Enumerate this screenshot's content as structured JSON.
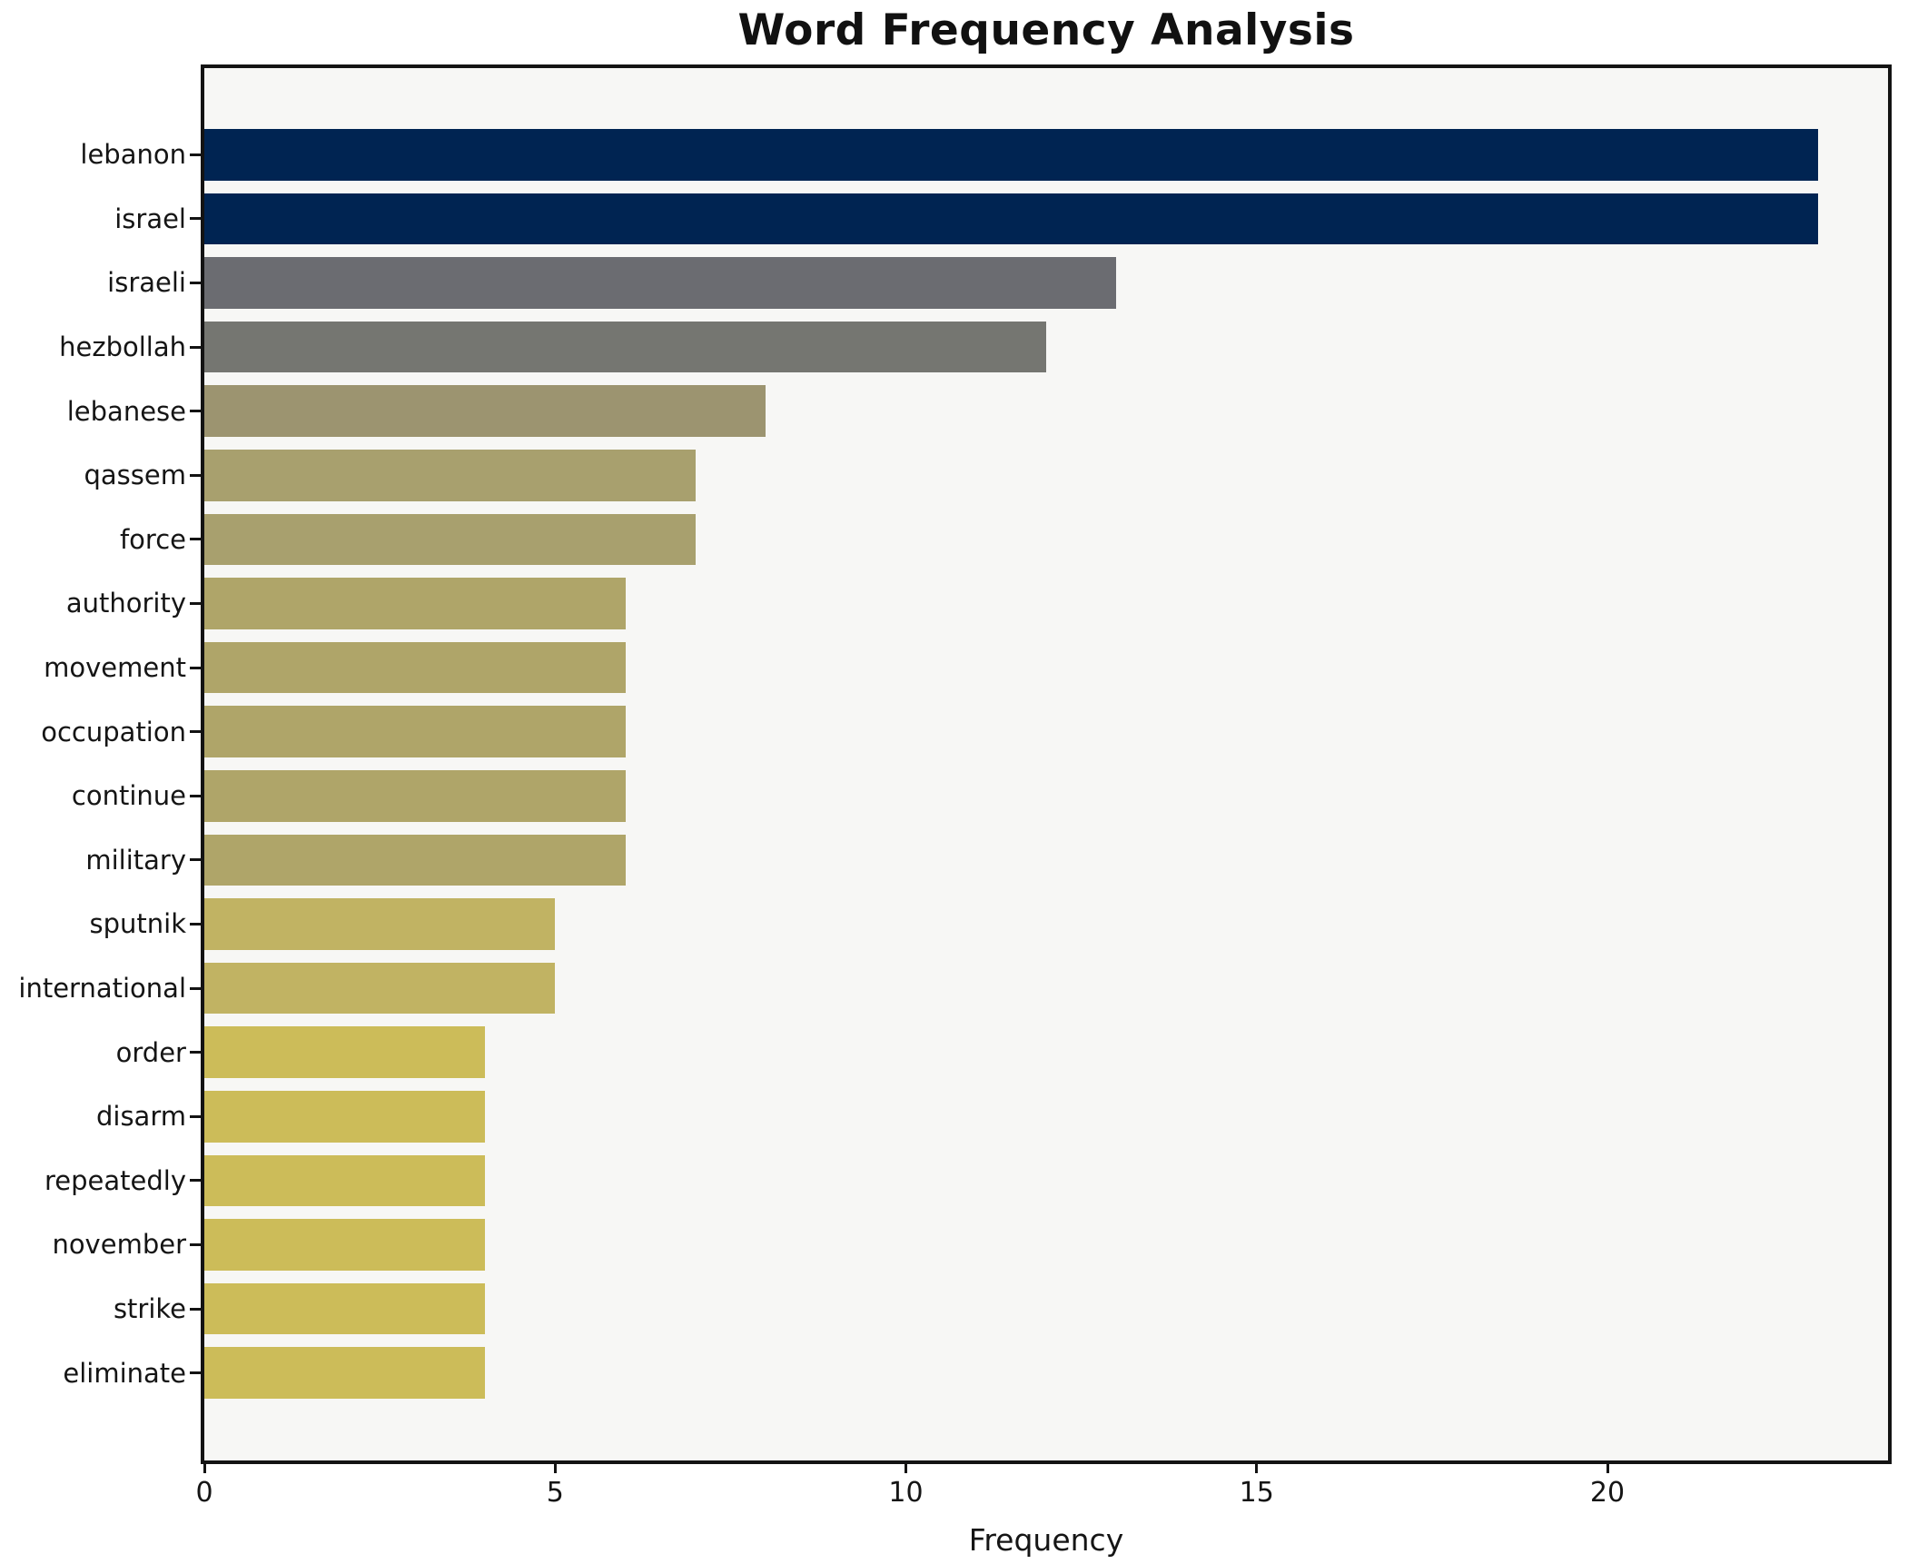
{
  "title": "Word Frequency Analysis",
  "chart_data": {
    "type": "bar",
    "orientation": "horizontal",
    "title": "Word Frequency Analysis",
    "xlabel": "Frequency",
    "ylabel": "",
    "categories": [
      "lebanon",
      "israel",
      "israeli",
      "hezbollah",
      "lebanese",
      "qassem",
      "force",
      "authority",
      "movement",
      "occupation",
      "continue",
      "military",
      "sputnik",
      "international",
      "order",
      "disarm",
      "repeatedly",
      "november",
      "strike",
      "eliminate"
    ],
    "values": [
      23,
      23,
      13,
      12,
      8,
      7,
      7,
      6,
      6,
      6,
      6,
      6,
      5,
      5,
      4,
      4,
      4,
      4,
      4,
      4
    ],
    "bar_colors": [
      "#002452",
      "#002452",
      "#6b6c71",
      "#757671",
      "#9c9470",
      "#a8a06e",
      "#a8a06e",
      "#afa569",
      "#afa569",
      "#afa569",
      "#afa569",
      "#afa569",
      "#c1b363",
      "#c1b363",
      "#ccbc59",
      "#ccbc59",
      "#ccbc59",
      "#ccbc59",
      "#ccbc59",
      "#ccbc59"
    ],
    "xlim": [
      0,
      24
    ],
    "xticks": [
      0,
      5,
      10,
      15,
      20
    ],
    "grid": false,
    "legend": null,
    "colors": {
      "plot_background": "#f7f7f5",
      "figure_background": "#ffffff",
      "spine": "#131313",
      "text": "#151515"
    }
  }
}
